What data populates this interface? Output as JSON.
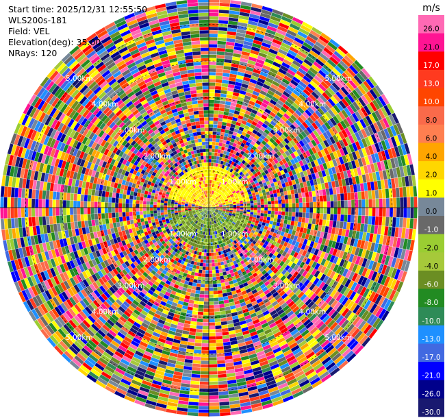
{
  "info": {
    "start_time": "Start time: 2025/12/31 12:55:50",
    "instrument": "WLS200s-181",
    "field": "Field: VEL",
    "elevation": "Elevation(deg): 35.00",
    "nrays": "NRays: 120"
  },
  "chart_data": {
    "type": "heatmap",
    "projection": "polar-ppi",
    "field": "VEL",
    "units": "m/s",
    "n_rays": 120,
    "range_max_km": 5.7,
    "range_rings_km": [
      1,
      2,
      3,
      4,
      5
    ],
    "ring_labels": [
      "1.00km",
      "2.00km",
      "3.00km",
      "4.00km",
      "5.00km"
    ],
    "colorbar": {
      "unit_label": "m/s",
      "bins": [
        {
          "label": "26.0",
          "color": "#ff69b4"
        },
        {
          "label": "21.0",
          "color": "#ff1493"
        },
        {
          "label": "17.0",
          "color": "#ff0000"
        },
        {
          "label": "13.0",
          "color": "#ff3a1f"
        },
        {
          "label": "10.0",
          "color": "#ff4500"
        },
        {
          "label": "8.0",
          "color": "#fa6a4a"
        },
        {
          "label": "6.0",
          "color": "#ff7f50"
        },
        {
          "label": "4.0",
          "color": "#ffa500"
        },
        {
          "label": "2.0",
          "color": "#ffd700"
        },
        {
          "label": "1.0",
          "color": "#ffff00"
        },
        {
          "label": "0.0",
          "color": "#778899"
        },
        {
          "label": "-1.0",
          "color": "#696969"
        },
        {
          "label": "-2.0",
          "color": "#9acd32"
        },
        {
          "label": "-4.0",
          "color": "#a6c93a"
        },
        {
          "label": "-6.0",
          "color": "#6b8e23"
        },
        {
          "label": "-8.0",
          "color": "#228b22"
        },
        {
          "label": "-10.0",
          "color": "#2e8b57"
        },
        {
          "label": "-13.0",
          "color": "#1e90ff"
        },
        {
          "label": "-17.0",
          "color": "#4169e1"
        },
        {
          "label": "-21.0",
          "color": "#0000ff"
        },
        {
          "label": "-26.0",
          "color": "#00008b"
        },
        {
          "label": "-30.0",
          "color": "#191970"
        }
      ]
    }
  }
}
